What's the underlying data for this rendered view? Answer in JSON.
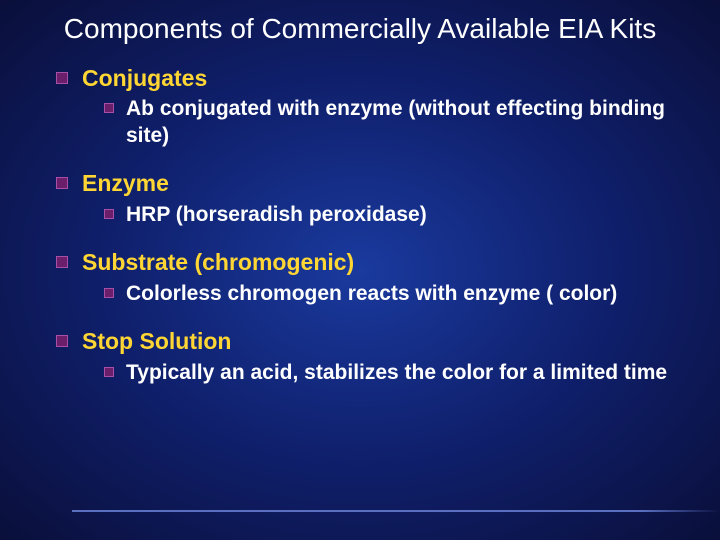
{
  "title": "Components of Commercially Available EIA Kits",
  "colors": {
    "title": "#ffffff",
    "heading": "#ffd633",
    "body": "#ffffff",
    "bullet_fill": "#6b1f6b",
    "bullet_border": "#aa4fa8",
    "bg_center": "#1a3a9e",
    "bg_mid": "#0f1f6b",
    "bg_edge": "#0a0f3a",
    "rule": "#5a6fc0"
  },
  "fonts": {
    "title_size": 28,
    "l1_size": 23,
    "l2_size": 21,
    "family": "Arial"
  },
  "items": [
    {
      "level": 1,
      "text": "Conjugates"
    },
    {
      "level": 2,
      "text": "Ab conjugated with enzyme (without effecting binding site)"
    },
    {
      "level": 1,
      "text": "Enzyme"
    },
    {
      "level": 2,
      "text": "HRP (horseradish peroxidase)"
    },
    {
      "level": 1,
      "text": "Substrate (chromogenic)"
    },
    {
      "level": 2,
      "text": "Colorless chromogen reacts with enzyme ( color)"
    },
    {
      "level": 1,
      "text": "Stop Solution"
    },
    {
      "level": 2,
      "text": "Typically an acid, stabilizes the color for a limited time"
    }
  ]
}
